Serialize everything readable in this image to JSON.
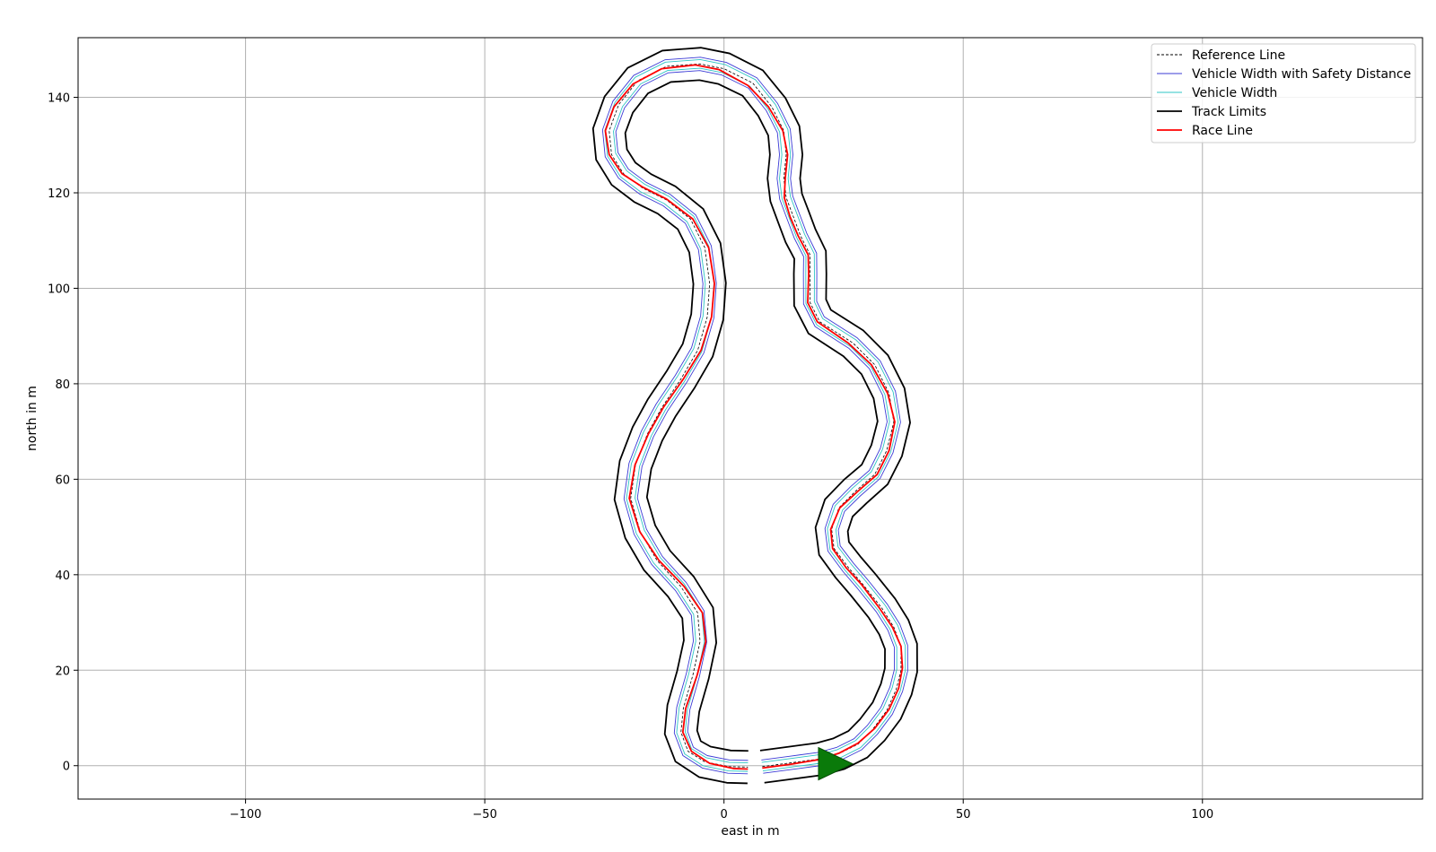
{
  "chart_data": {
    "type": "line",
    "title": "",
    "xlabel": "east in m",
    "ylabel": "north in m",
    "xlim": [
      -135,
      146
    ],
    "ylim": [
      -7,
      152.5
    ],
    "xticks": [
      -100,
      -50,
      0,
      50,
      100
    ],
    "yticks": [
      0,
      20,
      40,
      60,
      80,
      100,
      120,
      140
    ],
    "xtick_labels": [
      "−100",
      "−50",
      "0",
      "50",
      "100"
    ],
    "ytick_labels": [
      "0",
      "20",
      "40",
      "60",
      "80",
      "100",
      "120",
      "140"
    ],
    "grid": true,
    "legend_position": "top-right",
    "colors": {
      "reference": "#000000",
      "safety": "#3b3bd6",
      "vehicle": "#2ec4c4",
      "limits": "#000000",
      "race": "#ff0000",
      "start_marker": "#0a7a0a",
      "grid": "#b0b0b0"
    },
    "legend": [
      {
        "key": "reference",
        "label": "Reference Line"
      },
      {
        "key": "safety",
        "label": "Vehicle Width with Safety Distance"
      },
      {
        "key": "vehicle",
        "label": "Vehicle Width"
      },
      {
        "key": "limits",
        "label": "Track Limits"
      },
      {
        "key": "race",
        "label": "Race Line"
      }
    ],
    "track_width_m": 3.4,
    "vehicle_offset_m": 0.9,
    "safety_offset_m": 1.4,
    "start_marker": {
      "x": 20.5,
      "y": 0.4,
      "heading": "east"
    },
    "reference_line": [
      [
        8,
        -0.2
      ],
      [
        14,
        0.6
      ],
      [
        20,
        1.4
      ],
      [
        24,
        2.5
      ],
      [
        28,
        4.5
      ],
      [
        31,
        7.5
      ],
      [
        34,
        11.5
      ],
      [
        36,
        16
      ],
      [
        37,
        20
      ],
      [
        37,
        25
      ],
      [
        35.5,
        29
      ],
      [
        33,
        33
      ],
      [
        29,
        38
      ],
      [
        26,
        41.5
      ],
      [
        23,
        45.5
      ],
      [
        22.5,
        49.5
      ],
      [
        24,
        54
      ],
      [
        27.5,
        57.5
      ],
      [
        31.5,
        61
      ],
      [
        34,
        66
      ],
      [
        35.5,
        72
      ],
      [
        34.5,
        78
      ],
      [
        31.5,
        84
      ],
      [
        27,
        88.5
      ],
      [
        20,
        93
      ],
      [
        18,
        97
      ],
      [
        18,
        103
      ],
      [
        18,
        107
      ],
      [
        16,
        111
      ],
      [
        14.5,
        115
      ],
      [
        13,
        119
      ],
      [
        12.5,
        123
      ],
      [
        13,
        128
      ],
      [
        12.5,
        133
      ],
      [
        10,
        138
      ],
      [
        6,
        143
      ],
      [
        0,
        146
      ],
      [
        -5,
        147
      ],
      [
        -12,
        146.5
      ],
      [
        -18,
        143.5
      ],
      [
        -22,
        138.5
      ],
      [
        -24,
        133
      ],
      [
        -23.5,
        128
      ],
      [
        -21,
        124
      ],
      [
        -17,
        121
      ],
      [
        -12,
        118.5
      ],
      [
        -7,
        114.5
      ],
      [
        -4,
        108.5
      ],
      [
        -3,
        101
      ],
      [
        -3.5,
        94
      ],
      [
        -5.5,
        87
      ],
      [
        -9,
        81
      ],
      [
        -13,
        75
      ],
      [
        -16,
        69.5
      ],
      [
        -18.5,
        63
      ],
      [
        -19.5,
        56
      ],
      [
        -17.5,
        49
      ],
      [
        -14,
        43
      ],
      [
        -9,
        37.5
      ],
      [
        -5.5,
        32
      ],
      [
        -5,
        26
      ],
      [
        -6.5,
        19
      ],
      [
        -8.5,
        12
      ],
      [
        -9,
        7
      ],
      [
        -7.5,
        3
      ],
      [
        -4,
        0.8
      ],
      [
        1,
        -0.2
      ],
      [
        5,
        -0.3
      ]
    ],
    "race_line": [
      [
        8,
        -0.5
      ],
      [
        14,
        0.3
      ],
      [
        20,
        1.3
      ],
      [
        24,
        2.6
      ],
      [
        28,
        4.7
      ],
      [
        31.5,
        7.8
      ],
      [
        34.5,
        11.8
      ],
      [
        36.5,
        16.2
      ],
      [
        37.3,
        20.5
      ],
      [
        37,
        25
      ],
      [
        35.2,
        29
      ],
      [
        32.5,
        33
      ],
      [
        28.7,
        38
      ],
      [
        25.5,
        41.5
      ],
      [
        22.7,
        45.5
      ],
      [
        22.3,
        49.5
      ],
      [
        24.2,
        54
      ],
      [
        28,
        57.5
      ],
      [
        32,
        61
      ],
      [
        34.5,
        66
      ],
      [
        35.7,
        72
      ],
      [
        34.2,
        78
      ],
      [
        30.8,
        84
      ],
      [
        26,
        88.5
      ],
      [
        19.5,
        93
      ],
      [
        17.5,
        97
      ],
      [
        17.7,
        103
      ],
      [
        17.6,
        107
      ],
      [
        15.5,
        111
      ],
      [
        13.8,
        115
      ],
      [
        12.6,
        119
      ],
      [
        12.8,
        123
      ],
      [
        13.3,
        128
      ],
      [
        12.3,
        133
      ],
      [
        9.3,
        138
      ],
      [
        5,
        142.5
      ],
      [
        -1,
        145.8
      ],
      [
        -6,
        146.8
      ],
      [
        -13,
        146
      ],
      [
        -19,
        142.8
      ],
      [
        -23,
        138
      ],
      [
        -24.8,
        133
      ],
      [
        -24,
        128
      ],
      [
        -21.3,
        124
      ],
      [
        -17,
        121.2
      ],
      [
        -12,
        118.7
      ],
      [
        -6.5,
        114.5
      ],
      [
        -3.2,
        108.5
      ],
      [
        -2,
        101
      ],
      [
        -2.6,
        94
      ],
      [
        -4.8,
        87
      ],
      [
        -8.5,
        81
      ],
      [
        -12.7,
        75
      ],
      [
        -15.8,
        69.5
      ],
      [
        -18.6,
        63
      ],
      [
        -19.8,
        56
      ],
      [
        -17.6,
        49
      ],
      [
        -13.6,
        43
      ],
      [
        -8.3,
        37.5
      ],
      [
        -4.5,
        32
      ],
      [
        -3.8,
        26
      ],
      [
        -5.6,
        19
      ],
      [
        -8,
        12
      ],
      [
        -8.6,
        7
      ],
      [
        -6.8,
        3
      ],
      [
        -3,
        0.5
      ],
      [
        2,
        -0.6
      ],
      [
        5,
        -0.7
      ]
    ]
  }
}
